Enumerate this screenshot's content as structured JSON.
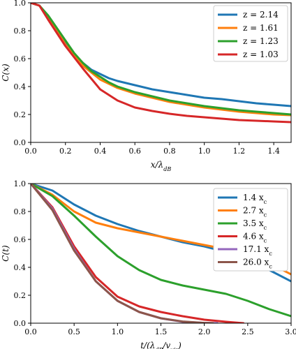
{
  "chart_data": [
    {
      "type": "line",
      "title": "",
      "xlabel": "x/λ_dB",
      "ylabel": "C(x)",
      "xlim": [
        0.0,
        1.5
      ],
      "ylim": [
        0.0,
        1.0
      ],
      "xticks": [
        "0.0",
        "0.2",
        "0.4",
        "0.6",
        "0.8",
        "1.0",
        "1.2",
        "1.4"
      ],
      "yticks": [
        "0.0",
        "0.2",
        "0.4",
        "0.6",
        "0.8",
        "1.0"
      ],
      "legend_position": "top-right",
      "grid": false,
      "series": [
        {
          "name": "z = 2.14",
          "color": "#1f77b4",
          "x": [
            0.0,
            0.05,
            0.1,
            0.15,
            0.2,
            0.25,
            0.3,
            0.35,
            0.4,
            0.45,
            0.5,
            0.6,
            0.7,
            0.8,
            0.9,
            1.0,
            1.1,
            1.2,
            1.3,
            1.4,
            1.5
          ],
          "y": [
            1.0,
            0.98,
            0.9,
            0.8,
            0.71,
            0.63,
            0.57,
            0.52,
            0.49,
            0.46,
            0.44,
            0.41,
            0.38,
            0.36,
            0.34,
            0.32,
            0.31,
            0.295,
            0.28,
            0.27,
            0.26
          ]
        },
        {
          "name": "z = 1.61",
          "color": "#ff7f0e",
          "x": [
            0.0,
            0.05,
            0.1,
            0.15,
            0.2,
            0.25,
            0.3,
            0.35,
            0.4,
            0.45,
            0.5,
            0.6,
            0.7,
            0.8,
            0.9,
            1.0,
            1.1,
            1.2,
            1.3,
            1.4,
            1.5
          ],
          "y": [
            1.0,
            0.98,
            0.9,
            0.8,
            0.7,
            0.62,
            0.55,
            0.5,
            0.45,
            0.42,
            0.39,
            0.35,
            0.32,
            0.29,
            0.27,
            0.25,
            0.235,
            0.22,
            0.21,
            0.2,
            0.195
          ]
        },
        {
          "name": "z = 1.23",
          "color": "#2ca02c",
          "x": [
            0.0,
            0.05,
            0.1,
            0.15,
            0.2,
            0.25,
            0.3,
            0.35,
            0.4,
            0.45,
            0.5,
            0.6,
            0.7,
            0.8,
            0.9,
            1.0,
            1.1,
            1.2,
            1.3,
            1.4,
            1.5
          ],
          "y": [
            1.0,
            0.98,
            0.91,
            0.82,
            0.73,
            0.64,
            0.57,
            0.51,
            0.47,
            0.43,
            0.4,
            0.36,
            0.33,
            0.3,
            0.28,
            0.26,
            0.245,
            0.23,
            0.22,
            0.21,
            0.2
          ]
        },
        {
          "name": "z = 1.03",
          "color": "#d62728",
          "x": [
            0.0,
            0.05,
            0.1,
            0.2,
            0.3,
            0.4,
            0.5,
            0.6,
            0.7,
            0.8,
            0.9,
            1.0,
            1.1,
            1.2,
            1.3,
            1.4,
            1.5
          ],
          "y": [
            1.0,
            0.98,
            0.88,
            0.69,
            0.53,
            0.38,
            0.3,
            0.25,
            0.225,
            0.205,
            0.19,
            0.18,
            0.17,
            0.16,
            0.155,
            0.15,
            0.145
          ]
        }
      ]
    },
    {
      "type": "line",
      "title": "",
      "xlabel": "t/(λ_dB/v_vir)",
      "ylabel": "C(t)",
      "xlim": [
        0.0,
        3.0
      ],
      "ylim": [
        0.0,
        1.0
      ],
      "xticks": [
        "0.0",
        "0.5",
        "1.0",
        "1.5",
        "2.0",
        "2.5",
        "3.0"
      ],
      "yticks": [
        "0.0",
        "0.2",
        "0.4",
        "0.6",
        "0.8",
        "1.0"
      ],
      "legend_position": "top-right",
      "grid": false,
      "series": [
        {
          "name": "1.4 x_c",
          "color": "#1f77b4",
          "x": [
            0.0,
            0.25,
            0.5,
            0.75,
            1.0,
            1.25,
            1.5,
            1.75,
            2.0,
            2.25,
            2.5,
            2.75,
            3.0
          ],
          "y": [
            1.0,
            0.95,
            0.85,
            0.77,
            0.71,
            0.66,
            0.62,
            0.58,
            0.55,
            0.51,
            0.45,
            0.38,
            0.3
          ]
        },
        {
          "name": "2.7 x_c",
          "color": "#ff7f0e",
          "x": [
            0.0,
            0.25,
            0.5,
            0.75,
            1.0,
            1.25,
            1.5,
            1.75,
            2.0,
            2.25,
            2.5,
            2.75,
            3.0
          ],
          "y": [
            1.0,
            0.92,
            0.8,
            0.72,
            0.68,
            0.65,
            0.62,
            0.59,
            0.56,
            0.53,
            0.49,
            0.43,
            0.35
          ]
        },
        {
          "name": "3.5 x_c",
          "color": "#2ca02c",
          "x": [
            0.0,
            0.25,
            0.5,
            0.75,
            1.0,
            1.25,
            1.5,
            1.75,
            2.0,
            2.25,
            2.5,
            2.75,
            3.0
          ],
          "y": [
            1.0,
            0.91,
            0.77,
            0.62,
            0.48,
            0.38,
            0.31,
            0.27,
            0.24,
            0.21,
            0.16,
            0.1,
            0.05
          ]
        },
        {
          "name": "4.6 x_c",
          "color": "#d62728",
          "x": [
            0.0,
            0.25,
            0.5,
            0.75,
            1.0,
            1.25,
            1.5,
            1.75,
            2.0,
            2.25,
            2.45
          ],
          "y": [
            1.0,
            0.83,
            0.55,
            0.33,
            0.19,
            0.12,
            0.08,
            0.05,
            0.025,
            0.01,
            0.0
          ]
        },
        {
          "name": "17.1 x_c",
          "color": "#9467bd",
          "x": [
            0.0,
            0.25,
            0.5,
            0.75,
            1.0,
            1.25,
            1.5,
            1.75,
            2.0,
            2.15
          ],
          "y": [
            1.0,
            0.82,
            0.53,
            0.3,
            0.16,
            0.08,
            0.035,
            0.01,
            0.002,
            0.0
          ]
        },
        {
          "name": "26.0 x_c",
          "color": "#8c564b",
          "x": [
            0.0,
            0.25,
            0.5,
            0.75,
            1.0,
            1.25,
            1.5,
            1.75,
            2.0,
            2.1
          ],
          "y": [
            1.0,
            0.81,
            0.52,
            0.3,
            0.16,
            0.08,
            0.035,
            0.012,
            0.002,
            0.0
          ]
        }
      ]
    }
  ]
}
